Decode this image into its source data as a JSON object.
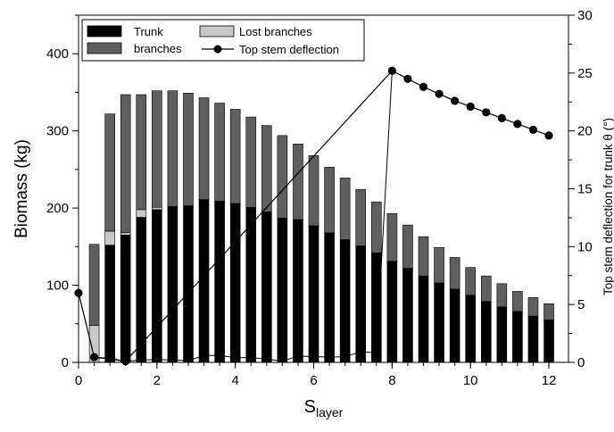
{
  "chart_data": {
    "type": "bar",
    "stacked": true,
    "x": [
      0.4,
      0.8,
      1.2,
      1.6,
      2.0,
      2.4,
      2.8,
      3.2,
      3.6,
      4.0,
      4.4,
      4.8,
      5.2,
      5.6,
      6.0,
      6.4,
      6.8,
      7.2,
      7.6,
      8.0,
      8.4,
      8.8,
      9.2,
      9.6,
      10.0,
      10.4,
      10.8,
      11.2,
      11.6,
      12.0
    ],
    "series": [
      {
        "name": "Trunk",
        "color": "#000000",
        "values": [
          0,
          152,
          165,
          188,
          198,
          202,
          203,
          211,
          209,
          206,
          201,
          195,
          187,
          185,
          177,
          168,
          159,
          151,
          142,
          131,
          122,
          112,
          103,
          95,
          87,
          79,
          72,
          66,
          60,
          55
        ]
      },
      {
        "name": "Lost branches",
        "color": "#c8c8c8",
        "values": [
          48,
          18,
          3,
          10,
          3,
          0,
          0,
          0,
          0,
          0,
          0,
          0,
          0,
          0,
          0,
          0,
          0,
          0,
          0,
          0,
          0,
          0,
          0,
          0,
          0,
          0,
          0,
          0,
          0,
          0
        ]
      },
      {
        "name": "branches",
        "color": "#5f5f5f",
        "values": [
          105,
          152,
          179,
          149,
          151,
          150,
          146,
          132,
          127,
          122,
          117,
          112,
          107,
          98,
          91,
          85,
          80,
          73,
          66,
          62,
          56,
          51,
          46,
          41,
          36,
          33,
          30,
          26,
          24,
          21
        ]
      }
    ],
    "line": {
      "name": "Top stem deflection",
      "axis": "right",
      "points": [
        [
          0,
          6
        ],
        [
          0.4,
          0.45
        ],
        [
          1.2,
          0.1
        ],
        [
          8.0,
          25.2
        ],
        [
          8.4,
          24.5
        ],
        [
          8.8,
          23.8
        ],
        [
          9.2,
          23.2
        ],
        [
          9.6,
          22.6
        ],
        [
          10.0,
          22.1
        ],
        [
          10.4,
          21.6
        ],
        [
          10.8,
          21.1
        ],
        [
          11.2,
          20.6
        ],
        [
          11.6,
          20.1
        ],
        [
          12.0,
          19.6
        ]
      ],
      "thin_points": [
        [
          0.4,
          0.45
        ],
        [
          0.8,
          0.35
        ],
        [
          1.2,
          0.1
        ],
        [
          1.6,
          0.2
        ],
        [
          2.0,
          0.25
        ],
        [
          2.4,
          0.2
        ],
        [
          2.8,
          0.15
        ],
        [
          3.2,
          0.6
        ],
        [
          3.6,
          0.6
        ],
        [
          4.0,
          0.4
        ],
        [
          4.4,
          0.4
        ],
        [
          4.8,
          0.3
        ],
        [
          5.2,
          0.1
        ],
        [
          5.6,
          0.55
        ],
        [
          6.0,
          0.5
        ],
        [
          6.4,
          0.45
        ],
        [
          6.8,
          0.5
        ],
        [
          7.2,
          0.9
        ],
        [
          7.6,
          0.85
        ],
        [
          8.0,
          25.2
        ]
      ]
    },
    "xlabel_main": "S",
    "xlabel_sub": "layer",
    "ylabel": "Biomass (kg)",
    "y2label": "Top stem deflection for trunk θ (°)",
    "xlim": [
      0,
      12.5
    ],
    "ylim": [
      0,
      450
    ],
    "y2lim": [
      0,
      30
    ],
    "xticks": [
      "0",
      "2",
      "4",
      "6",
      "8",
      "10",
      "12"
    ],
    "yticks": [
      "0",
      "100",
      "200",
      "300",
      "400"
    ],
    "y2ticks": [
      "0",
      "5",
      "10",
      "15",
      "20",
      "25",
      "30"
    ],
    "grid": false,
    "legend": {
      "position": "top-left",
      "entries": [
        {
          "label": "Trunk",
          "kind": "bar",
          "color": "#000000"
        },
        {
          "label": "Lost branches",
          "kind": "bar",
          "color": "#c8c8c8"
        },
        {
          "label": "branches",
          "kind": "bar",
          "color": "#5f5f5f"
        },
        {
          "label": "Top stem deflection",
          "kind": "line-marker",
          "color": "#000000"
        }
      ]
    }
  }
}
